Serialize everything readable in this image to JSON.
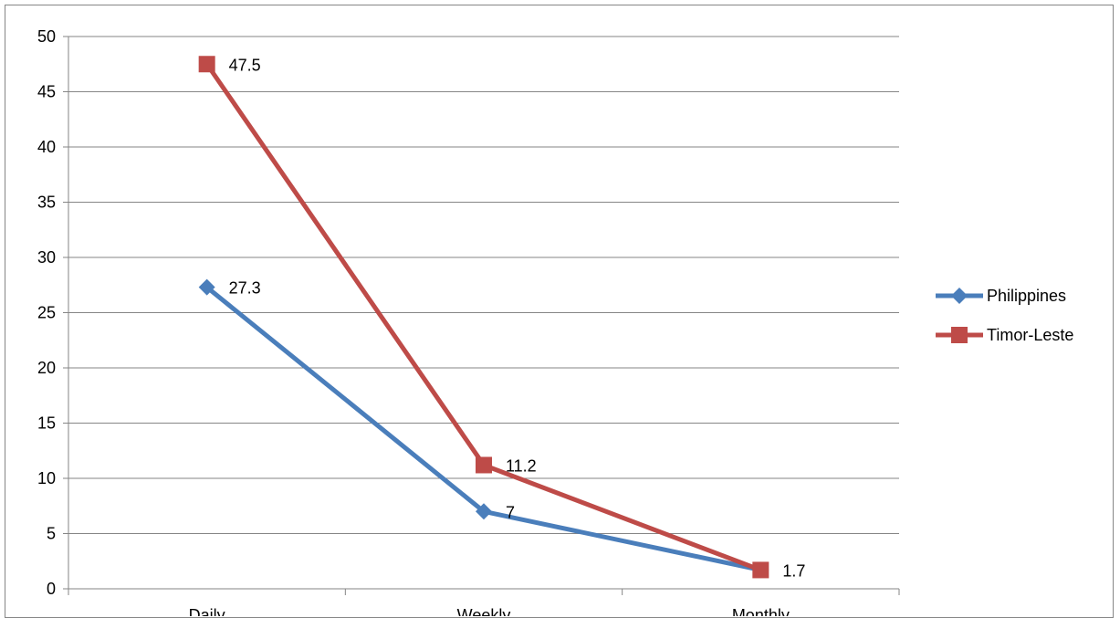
{
  "chart_data": {
    "type": "line",
    "title": "",
    "xlabel": "",
    "ylabel": "",
    "categories": [
      "Daily",
      "Weekly",
      "Monthly"
    ],
    "ylim": [
      0,
      50
    ],
    "ytick_step": 5,
    "grid": "horizontal",
    "legend_position": "right",
    "series": [
      {
        "name": "Philippines",
        "values": [
          27.3,
          7,
          1.7
        ],
        "color": "#4A7EBB",
        "marker": "diamond",
        "data_labels": [
          "27.3",
          "7",
          ""
        ]
      },
      {
        "name": "Timor-Leste",
        "values": [
          47.5,
          11.2,
          1.7
        ],
        "color": "#BE4B48",
        "marker": "square",
        "data_labels": [
          "47.5",
          "11.2",
          "1.7"
        ]
      }
    ]
  }
}
